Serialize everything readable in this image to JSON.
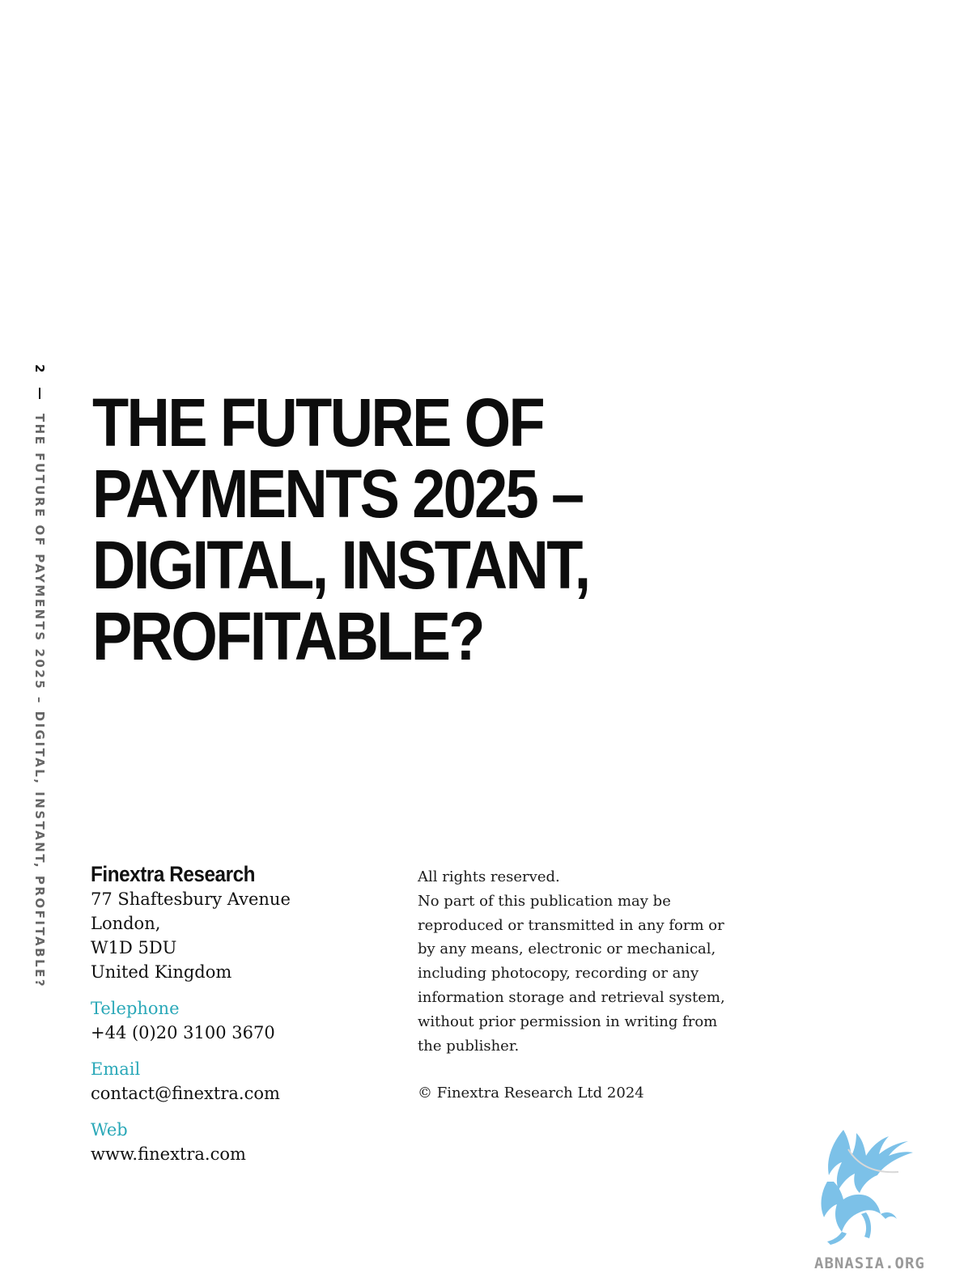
{
  "running_header": {
    "page_number": "2",
    "title": "THE FUTURE OF PAYMENTS 2025 – DIGITAL, INSTANT, PROFITABLE?"
  },
  "title": {
    "lines": [
      "THE FUTURE OF",
      "PAYMENTS 2025 –",
      "DIGITAL, INSTANT,",
      "PROFITABLE?"
    ]
  },
  "contact": {
    "organization": "Finextra Research",
    "address_lines": [
      "77 Shaftesbury Avenue",
      "London,",
      "W1D 5DU",
      "United Kingdom"
    ],
    "telephone_label": "Telephone",
    "telephone": "+44 (0)20 3100 3670",
    "email_label": "Email",
    "email": "contact@finextra.com",
    "web_label": "Web",
    "web": "www.finextra.com"
  },
  "rights": {
    "lines": [
      "All rights reserved.",
      "No part of this publication may be",
      "reproduced or transmitted in any form or",
      "by any means, electronic or mechanical,",
      "including photocopy, recording or any",
      "information storage and retrieval system,",
      "without prior permission in writing from",
      "the publisher."
    ],
    "copyright": "© Finextra Research Ltd 2024"
  },
  "watermark": {
    "text": "ABNASIA.ORG",
    "color": "#7cc1e8"
  },
  "colors": {
    "accent": "#2aa8b8",
    "text": "#111111",
    "muted": "#666666"
  }
}
